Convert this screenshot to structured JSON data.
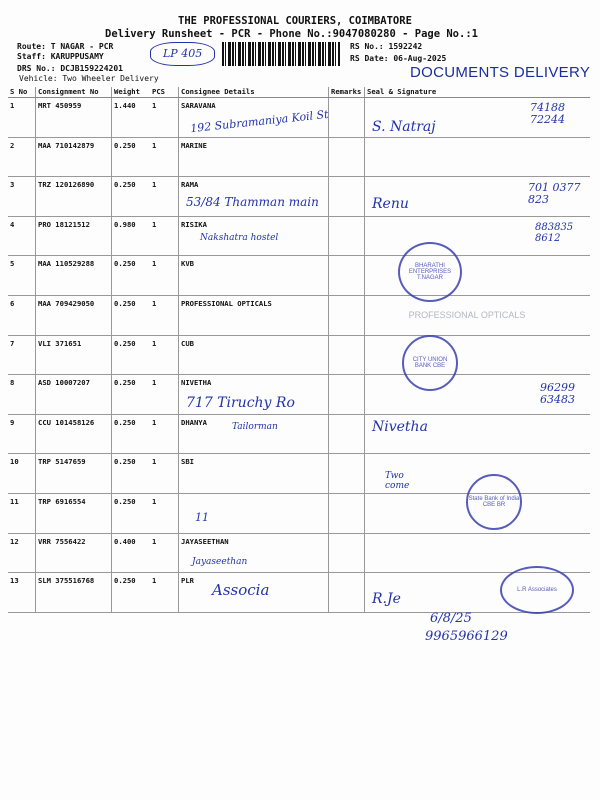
{
  "header": {
    "company": "THE PROFESSIONAL COURIERS, COIMBATORE",
    "subtitle": "Delivery Runsheet - PCR - Phone No.:9047080280 - Page No.:1",
    "route": "Route: T NAGAR - PCR",
    "staff": "Staff: KARUPPUSAMY",
    "drs": "DRS No.: DCJB159224201",
    "vehicle": "Vehicle: Two Wheeler Delivery",
    "rs_no": "RS No.: 1592242",
    "rs_date": "RS Date: 06-Aug-2025",
    "stamp": "DOCUMENTS DELIVERY"
  },
  "table": {
    "columns": [
      "S No",
      "Consignment No",
      "Weight",
      "PCS",
      "Consignee Details",
      "Remarks",
      "Seal & Signature"
    ],
    "rows": [
      {
        "sno": "1",
        "cn": "MRT 450959",
        "weight": "1.440",
        "pcs": "1",
        "consignee": "SARAVANA"
      },
      {
        "sno": "2",
        "cn": "MAA 710142879",
        "weight": "0.250",
        "pcs": "1",
        "consignee": "MARINE"
      },
      {
        "sno": "3",
        "cn": "TRZ 120126890",
        "weight": "0.250",
        "pcs": "1",
        "consignee": "RAMA"
      },
      {
        "sno": "4",
        "cn": "PRO 18121512",
        "weight": "0.980",
        "pcs": "1",
        "consignee": "RISIKA"
      },
      {
        "sno": "5",
        "cn": "MAA 110529288",
        "weight": "0.250",
        "pcs": "1",
        "consignee": "KVB"
      },
      {
        "sno": "6",
        "cn": "MAA 709429050",
        "weight": "0.250",
        "pcs": "1",
        "consignee": "PROFESSIONAL OPTICALS"
      },
      {
        "sno": "7",
        "cn": "VLI 371651",
        "weight": "0.250",
        "pcs": "1",
        "consignee": "CUB"
      },
      {
        "sno": "8",
        "cn": "ASD 10007207",
        "weight": "0.250",
        "pcs": "1",
        "consignee": "NIVETHA"
      },
      {
        "sno": "9",
        "cn": "CCU 101458126",
        "weight": "0.250",
        "pcs": "1",
        "consignee": "DHANYA"
      },
      {
        "sno": "10",
        "cn": "TRP 5147659",
        "weight": "0.250",
        "pcs": "1",
        "consignee": "SBI"
      },
      {
        "sno": "11",
        "cn": "TRP 6916554",
        "weight": "0.250",
        "pcs": "1",
        "consignee": ""
      },
      {
        "sno": "12",
        "cn": "VRR 7556422",
        "weight": "0.400",
        "pcs": "1",
        "consignee": "JAYASEETHAN"
      },
      {
        "sno": "13",
        "cn": "SLM 375516768",
        "weight": "0.250",
        "pcs": "1",
        "consignee": "PLR"
      }
    ]
  },
  "handwriting": {
    "n1": "192 Subramaniya Koil St",
    "n3": "53/84 Thamman main",
    "n4": "Nakshatra hostel",
    "n8": "717 Tiruchy Ro",
    "n9": "Tailorman",
    "n11": "11",
    "n12": "Jayaseethan",
    "n13": "Associa",
    "p1": "74188 72244",
    "p3": "701 0377 823",
    "p4": "883835 8612",
    "p8": "96299 63483",
    "sig1": "S. Natraj",
    "sig3": "Renu",
    "sig8": "Nivetha",
    "sig13": "R.Je",
    "date": "6/8/25",
    "phone": "9965966129",
    "note10": "Two come",
    "top": "LP 405"
  },
  "stamps": {
    "s5": "BHARATHI ENTERPRISES T.NAGAR",
    "s7": "CITY UNION BANK CBE",
    "s10": "State Bank of India CBE BR",
    "s13": "L.R Associates",
    "s6": "PROFESSIONAL OPTICALS"
  },
  "colors": {
    "ink": "#2233aa",
    "stamp": "#3a40b0",
    "print": "#111111"
  }
}
